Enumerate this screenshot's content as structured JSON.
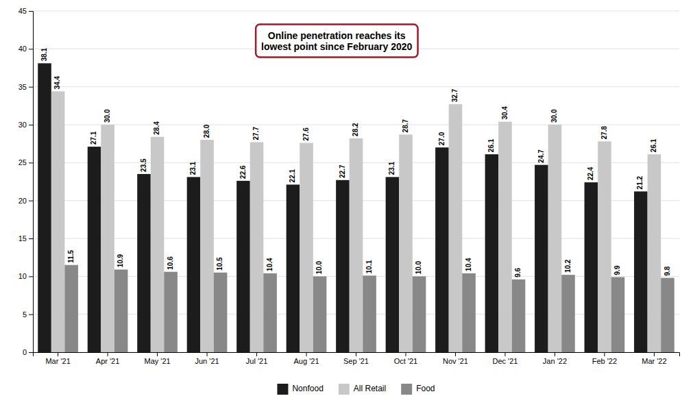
{
  "chart_data": {
    "type": "bar",
    "categories": [
      "Mar '21",
      "Apr '21",
      "May '21",
      "Jun '21",
      "Jul '21",
      "Aug '21",
      "Sep '21",
      "Oct '21",
      "Nov '21",
      "Dec '21",
      "Jan '22",
      "Feb '22",
      "Mar '22"
    ],
    "series": [
      {
        "name": "Nonfood",
        "color": "#1c1c1c",
        "values": [
          38.1,
          27.1,
          23.5,
          23.1,
          22.6,
          22.1,
          22.7,
          23.1,
          27.0,
          26.1,
          24.7,
          22.4,
          21.2
        ],
        "value_labels": [
          "38.1",
          "27.1",
          "23.5",
          "23.1",
          "22.6",
          "22.1",
          "22.7",
          "23.1",
          "27.0",
          "26.1",
          "24.7",
          "22.4",
          "21.2"
        ]
      },
      {
        "name": "All Retail",
        "color": "#c8c8c8",
        "values": [
          34.4,
          30.0,
          28.4,
          28.0,
          27.7,
          27.6,
          28.2,
          28.7,
          32.7,
          30.4,
          30.0,
          27.8,
          26.1
        ],
        "value_labels": [
          "34.4",
          "30.0",
          "28.4",
          "28.0",
          "27.7",
          "27.6",
          "28.2",
          "28.7",
          "32.7",
          "30.4",
          "30.0",
          "27.8",
          "26.1"
        ]
      },
      {
        "name": "Food",
        "color": "#888888",
        "values": [
          11.5,
          10.9,
          10.6,
          10.5,
          10.4,
          10.0,
          10.1,
          10.0,
          10.4,
          9.6,
          10.2,
          9.9,
          9.8
        ],
        "value_labels": [
          "11.5",
          "10.9",
          "10.6",
          "10.5",
          "10.4",
          "10.0",
          "10.1",
          "10.0",
          "10.4",
          "9.6",
          "10.2",
          "9.9",
          "9.8"
        ]
      }
    ],
    "annotation": "Online penetration reaches its\nlowest point since February 2020",
    "ylim": [
      0,
      45
    ],
    "yticks": [
      0,
      5,
      10,
      15,
      20,
      25,
      30,
      35,
      40,
      45
    ],
    "grid": true,
    "legend": "bottom",
    "data_labels": true
  }
}
